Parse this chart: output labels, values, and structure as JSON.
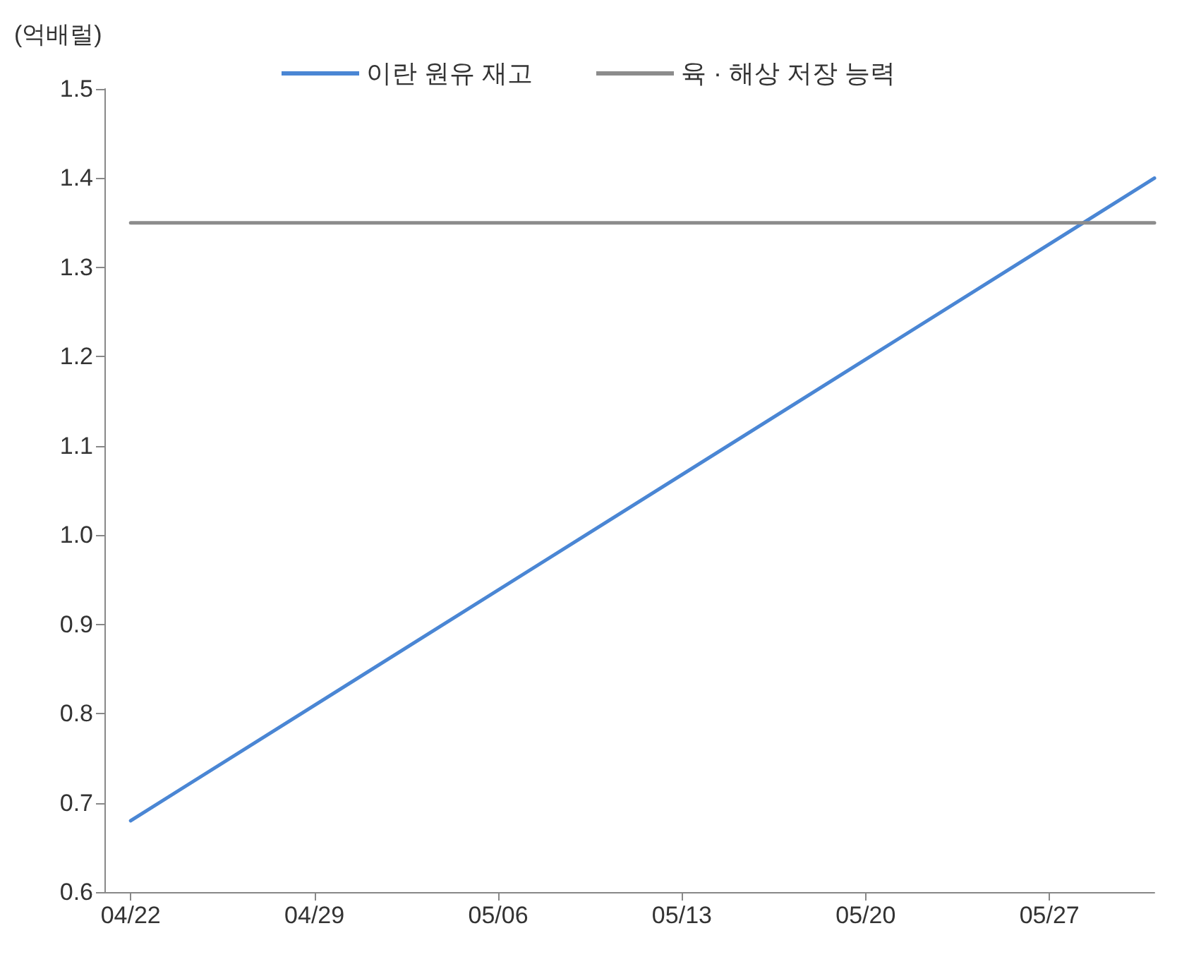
{
  "chart_data": {
    "type": "line",
    "ylabel": "(억배럴)",
    "series": [
      {
        "name": "이란 원유 재고",
        "color": "#4a86d4",
        "x": [
          "--04-22",
          "--05-31"
        ],
        "values": [
          0.68,
          1.4
        ]
      },
      {
        "name": "육 · 해상 저장 능력",
        "color": "#8c8c8c",
        "x": [
          "--04-22",
          "--05-31"
        ],
        "values": [
          1.35,
          1.35
        ]
      }
    ],
    "xlim": [
      "--04-21",
      "--05-31"
    ],
    "xticks": [
      {
        "value": "--04-22",
        "label": "04/22"
      },
      {
        "value": "--04-29",
        "label": "04/29"
      },
      {
        "value": "--05-06",
        "label": "05/06"
      },
      {
        "value": "--05-13",
        "label": "05/13"
      },
      {
        "value": "--05-20",
        "label": "05/20"
      },
      {
        "value": "--05-27",
        "label": "05/27"
      }
    ],
    "ylim": [
      0.6,
      1.5
    ],
    "yticks": [
      {
        "value": 0.6,
        "label": "0.6"
      },
      {
        "value": 0.7,
        "label": "0.7"
      },
      {
        "value": 0.8,
        "label": "0.8"
      },
      {
        "value": 0.9,
        "label": "0.9"
      },
      {
        "value": 1.0,
        "label": "1.0"
      },
      {
        "value": 1.1,
        "label": "1.1"
      },
      {
        "value": 1.2,
        "label": "1.2"
      },
      {
        "value": 1.3,
        "label": "1.3"
      },
      {
        "value": 1.4,
        "label": "1.4"
      },
      {
        "value": 1.5,
        "label": "1.5"
      }
    ],
    "grid": false,
    "legend": "top",
    "marker": "none",
    "line_style": "solid"
  }
}
